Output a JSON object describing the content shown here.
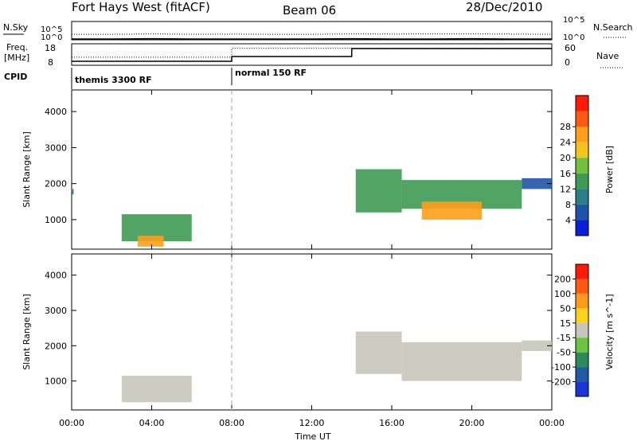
{
  "header": {
    "station": "Fort Hays West (fitACF)",
    "beam": "Beam 06",
    "date": "28/Dec/2010"
  },
  "chart_data": [
    {
      "type": "line",
      "panel": "noise",
      "left_labels": [
        "N.Sky",
        "10^5",
        "10^0"
      ],
      "right_labels": [
        "N.Search",
        "10^5",
        "10^0"
      ],
      "series": [
        {
          "name": "N.Sky",
          "style": "solid"
        },
        {
          "name": "N.Search",
          "style": "dotted"
        }
      ],
      "y_scale": "log",
      "ylim": [
        1,
        100000
      ],
      "x": [
        0,
        2,
        4,
        6,
        8,
        10,
        12,
        14,
        16,
        18,
        20,
        22,
        24
      ],
      "nsky": [
        1,
        1,
        1.2,
        1,
        1,
        1,
        1,
        1.2,
        1,
        1,
        1.2,
        1,
        1
      ],
      "nsearch": [
        30,
        30,
        40,
        30,
        35,
        30,
        30,
        40,
        35,
        40,
        40,
        35,
        30
      ]
    },
    {
      "type": "line",
      "panel": "frequency",
      "left_labels": [
        "Freq.",
        "[MHz]",
        "18",
        "8"
      ],
      "right_labels": [
        "60",
        "0",
        "Nave"
      ],
      "ylim": [
        8,
        18
      ],
      "nave_lim": [
        0,
        60
      ],
      "freq_x": [
        0,
        8,
        8,
        24
      ],
      "freq_y": [
        11.8,
        11.8,
        16.5,
        16.5
      ],
      "nave_x": [
        0,
        8,
        8,
        14,
        14,
        24
      ],
      "nave_y": [
        10,
        10,
        25,
        25,
        50,
        50
      ]
    },
    {
      "type": "table",
      "panel": "cpid",
      "label": "CPID",
      "segments": [
        {
          "name": "themis 3300 RF",
          "start": 0,
          "end": 8
        },
        {
          "name": "normal 150 RF",
          "start": 8,
          "end": 24
        }
      ]
    },
    {
      "type": "heatmap",
      "panel": "power",
      "ylabel": "Slant Range [km]",
      "yticks": [
        1000,
        2000,
        3000,
        4000
      ],
      "ylim": [
        180,
        4600
      ],
      "colorbar": {
        "label": "Power [dB]",
        "ticks": [
          4,
          8,
          12,
          16,
          20,
          24,
          28
        ],
        "colors": [
          "#0a1fd8",
          "#1f53a8",
          "#2b7d8a",
          "#3f9a54",
          "#72c040",
          "#f2c41c",
          "#ff9f1a",
          "#ff5a10",
          "#ff1a08"
        ]
      },
      "regions": [
        {
          "t0": 0.0,
          "t1": 0.1,
          "r0": 1700,
          "r1": 1850,
          "level": 2
        },
        {
          "t0": 2.5,
          "t1": 6.0,
          "r0": 400,
          "r1": 1150,
          "level": 3
        },
        {
          "t0": 3.3,
          "t1": 4.6,
          "r0": 250,
          "r1": 550,
          "level": 6
        },
        {
          "t0": 14.2,
          "t1": 16.5,
          "r0": 1200,
          "r1": 2400,
          "level": 3
        },
        {
          "t0": 16.5,
          "t1": 22.5,
          "r0": 1300,
          "r1": 2100,
          "level": 3
        },
        {
          "t0": 17.5,
          "t1": 20.5,
          "r0": 1000,
          "r1": 1500,
          "level": 6
        },
        {
          "t0": 22.5,
          "t1": 24.0,
          "r0": 1850,
          "r1": 2150,
          "level": 1
        }
      ]
    },
    {
      "type": "heatmap",
      "panel": "velocity",
      "xlabel": "Time UT",
      "ylabel": "Slant Range [km]",
      "xticks": [
        "00:00",
        "04:00",
        "08:00",
        "12:00",
        "16:00",
        "20:00",
        "00:00"
      ],
      "yticks": [
        1000,
        2000,
        3000,
        4000
      ],
      "ylim": [
        180,
        4600
      ],
      "colorbar": {
        "label": "Velocity [m s^-1]",
        "ticks": [
          200,
          100,
          50,
          15,
          -15,
          -50,
          -100,
          -200
        ],
        "colors": [
          "#1a34d8",
          "#205aa2",
          "#2c8a5a",
          "#68c640",
          "#c6c6bd",
          "#ffd21c",
          "#ff9a1a",
          "#ff5a10",
          "#ff1a08"
        ]
      },
      "regions": [
        {
          "t0": 2.5,
          "t1": 6.0,
          "r0": 400,
          "r1": 1150,
          "level": 4
        },
        {
          "t0": 14.2,
          "t1": 16.5,
          "r0": 1200,
          "r1": 2400,
          "level": 4
        },
        {
          "t0": 16.5,
          "t1": 22.5,
          "r0": 1000,
          "r1": 2100,
          "level": 4
        },
        {
          "t0": 22.5,
          "t1": 24.0,
          "r0": 1850,
          "r1": 2150,
          "level": 4
        }
      ]
    }
  ]
}
